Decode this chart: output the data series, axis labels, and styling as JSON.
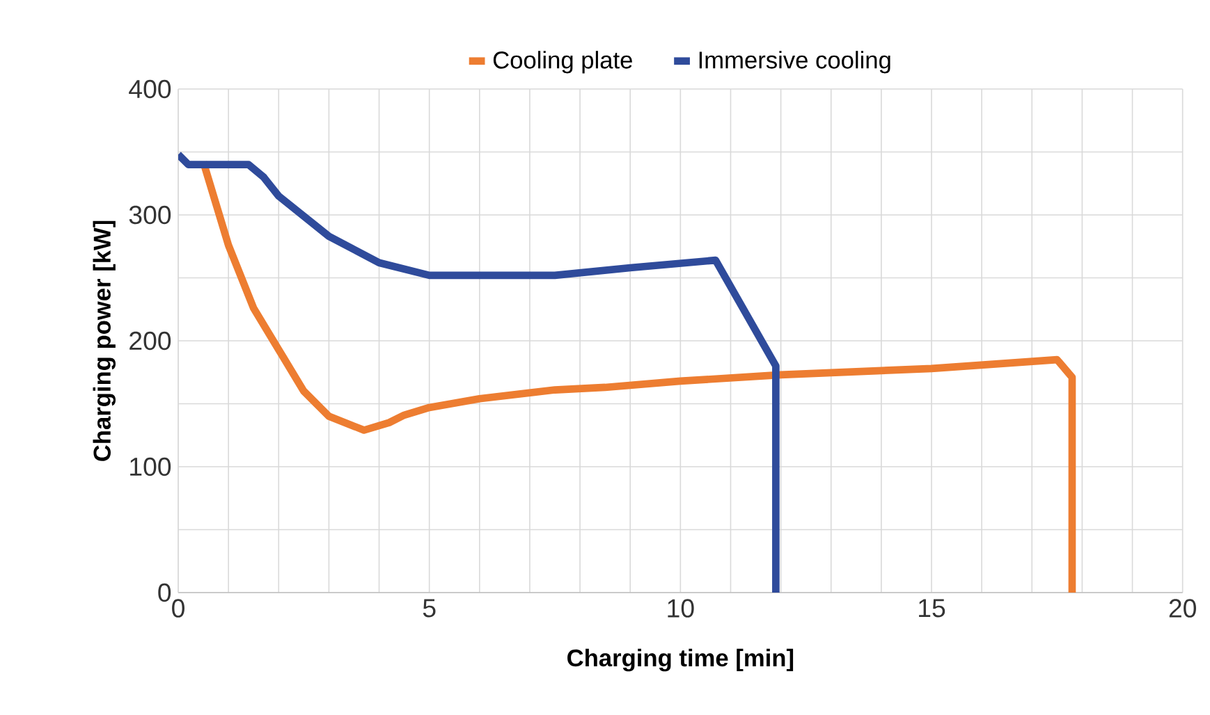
{
  "chart_data": {
    "type": "line",
    "xlabel": "Charging time [min]",
    "ylabel": "Charging power [kW]",
    "xlim": [
      0,
      20
    ],
    "ylim": [
      0,
      400
    ],
    "xticks": [
      0,
      {
        "value": 1,
        "label": null
      },
      {
        "value": 2,
        "label": null
      },
      {
        "value": 3,
        "label": null
      },
      {
        "value": 4,
        "label": null
      },
      5,
      {
        "value": 6,
        "label": null
      },
      {
        "value": 7,
        "label": null
      },
      {
        "value": 8,
        "label": null
      },
      {
        "value": 9,
        "label": null
      },
      10,
      {
        "value": 11,
        "label": null
      },
      {
        "value": 12,
        "label": null
      },
      {
        "value": 13,
        "label": null
      },
      {
        "value": 14,
        "label": null
      },
      15,
      {
        "value": 16,
        "label": null
      },
      {
        "value": 17,
        "label": null
      },
      {
        "value": 18,
        "label": null
      },
      {
        "value": 19,
        "label": null
      },
      20
    ],
    "yticks": [
      0,
      {
        "value": 50,
        "label": null
      },
      100,
      {
        "value": 150,
        "label": null
      },
      200,
      {
        "value": 250,
        "label": null
      },
      300,
      {
        "value": 350,
        "label": null
      },
      400
    ],
    "grid": true,
    "legend": "top",
    "marker": "none",
    "line_style": "solid",
    "series": [
      {
        "name": "Cooling plate",
        "color": "#ed7d31",
        "x": [
          0.5,
          1,
          1.5,
          2,
          2.5,
          3,
          3.7,
          4.2,
          4.5,
          5,
          6,
          7.5,
          8.5,
          10,
          12,
          15,
          17.5,
          17.8,
          17.8
        ],
        "values": [
          342,
          276,
          226,
          193,
          160,
          140,
          129,
          135,
          141,
          147,
          154,
          161,
          163,
          168,
          173,
          178,
          185,
          171,
          0
        ]
      },
      {
        "name": "Immersive cooling",
        "color": "#2f4b9b",
        "x": [
          0,
          0.2,
          1.4,
          1.7,
          2,
          3,
          4,
          5,
          6,
          7.5,
          9,
          10.7,
          11.9,
          11.9
        ],
        "values": [
          348,
          340,
          340,
          330,
          315,
          283,
          262,
          252,
          252,
          252,
          258,
          264,
          180,
          0
        ]
      }
    ]
  }
}
